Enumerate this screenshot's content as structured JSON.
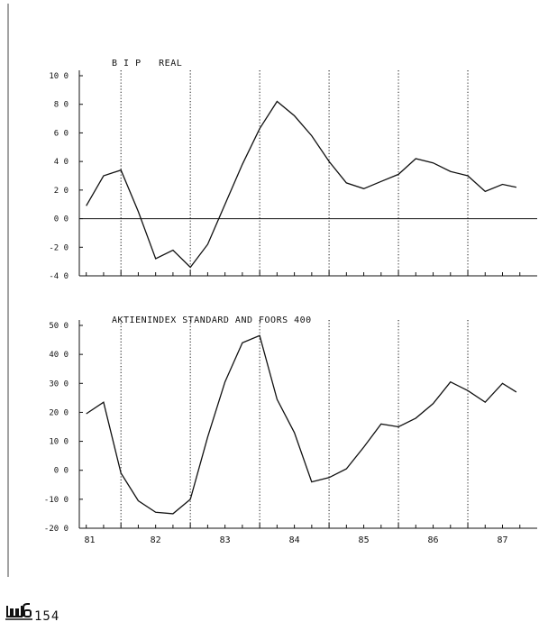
{
  "chart_data": [
    {
      "type": "line",
      "title": "B I P   REAL",
      "xlabel": "",
      "ylabel": "",
      "ylim": [
        -4,
        10
      ],
      "yticks": [
        10,
        8,
        6,
        4,
        2,
        0,
        -2,
        -4
      ],
      "ytick_labels": [
        "10 0",
        "8 0",
        "6 0",
        "4 0",
        "2 0",
        "0 0",
        "-2 0",
        "-4 0"
      ],
      "zero_line": true,
      "x": [
        81.0,
        81.25,
        81.5,
        81.75,
        82.0,
        82.25,
        82.5,
        82.75,
        83.0,
        83.25,
        83.5,
        83.75,
        84.0,
        84.25,
        84.5,
        84.75,
        85.0,
        85.25,
        85.5,
        85.75,
        86.0,
        86.25,
        86.5,
        86.75,
        87.0,
        87.2
      ],
      "series": [
        {
          "values": [
            0.9,
            3.0,
            3.4,
            0.5,
            -2.8,
            -2.2,
            -3.4,
            -1.8,
            1.0,
            3.8,
            6.3,
            8.2,
            7.2,
            5.8,
            4.0,
            2.5,
            2.1,
            2.6,
            3.1,
            4.2,
            3.9,
            3.3,
            3.0,
            1.9,
            2.4,
            2.2
          ]
        }
      ]
    },
    {
      "type": "line",
      "title": "AKTIENINDEX STANDARD AND FOORS 400",
      "xlabel": "",
      "ylabel": "",
      "ylim": [
        -20,
        50
      ],
      "yticks": [
        50,
        40,
        30,
        20,
        10,
        0,
        -10,
        -20
      ],
      "ytick_labels": [
        "50 0",
        "40 0",
        "30 0",
        "20 0",
        "10 0",
        "0 0",
        "-10 0",
        "-20 0"
      ],
      "zero_line": false,
      "x": [
        81.0,
        81.25,
        81.5,
        81.75,
        82.0,
        82.25,
        82.5,
        82.75,
        83.0,
        83.25,
        83.5,
        83.75,
        84.0,
        84.25,
        84.5,
        84.75,
        85.0,
        85.25,
        85.5,
        85.75,
        86.0,
        86.25,
        86.5,
        86.75,
        87.0,
        87.2
      ],
      "series": [
        {
          "values": [
            19.5,
            23.5,
            -1.0,
            -10.5,
            -14.5,
            -15.0,
            -10.0,
            11.5,
            30.5,
            44.0,
            46.5,
            24.5,
            13.0,
            -4.0,
            -2.5,
            0.5,
            8.0,
            16.0,
            15.0,
            18.0,
            23.0,
            30.5,
            27.5,
            23.5,
            30.0,
            27.0
          ]
        }
      ]
    }
  ],
  "x_axis": {
    "xlim": [
      80.9,
      87.5
    ],
    "year_lines": [
      81.5,
      82.5,
      83.5,
      84.5,
      85.5,
      86.5
    ],
    "labels": [
      {
        "x": 81.05,
        "text": "81"
      },
      {
        "x": 82.0,
        "text": "82"
      },
      {
        "x": 83.0,
        "text": "83"
      },
      {
        "x": 84.0,
        "text": "84"
      },
      {
        "x": 85.0,
        "text": "85"
      },
      {
        "x": 86.0,
        "text": "86"
      },
      {
        "x": 87.0,
        "text": "87"
      }
    ]
  },
  "footer": {
    "logo_text": "wifo",
    "page_number": "154"
  }
}
